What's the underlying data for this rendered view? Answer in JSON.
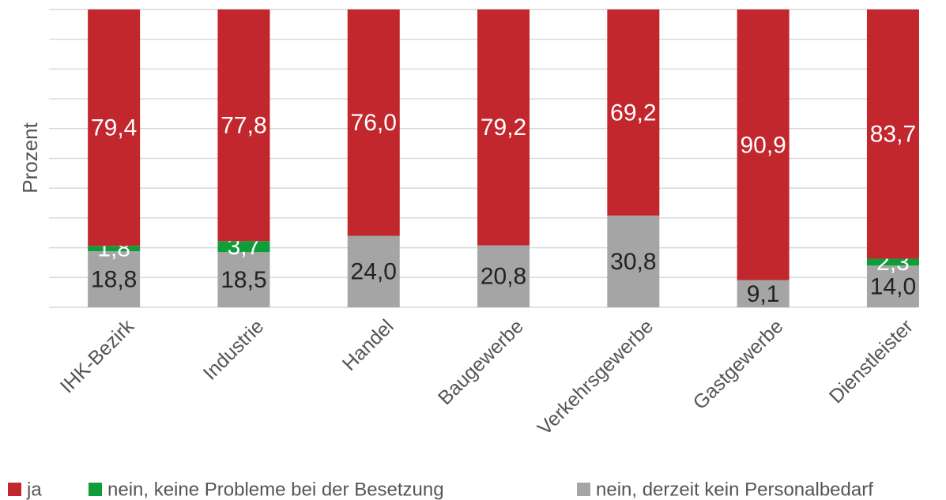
{
  "chart_data": {
    "type": "stacked_bar",
    "y_axis_label": "Prozent",
    "categories": [
      "IHK-Bezirk",
      "Industrie",
      "Handel",
      "Baugewerbe",
      "Verkehrsgewerbe",
      "Gastgewerbe",
      "Dienstleister"
    ],
    "series": [
      {
        "name": "nein, derzeit kein Personalbedarf",
        "color": "#a5a5a5",
        "values": [
          18.8,
          18.5,
          24.0,
          20.8,
          30.8,
          9.1,
          14.0
        ],
        "value_labels": [
          "18,8",
          "18,5",
          "24,0",
          "20,8",
          "30,8",
          "9,1",
          "14,0"
        ]
      },
      {
        "name": "nein, keine Probleme bei der Besetzung",
        "color": "#0f9d3a",
        "values": [
          1.8,
          3.7,
          0,
          0,
          0,
          0,
          2.3
        ],
        "value_labels": [
          "1,8",
          "3,7",
          null,
          null,
          null,
          null,
          "2,3"
        ]
      },
      {
        "name": "ja",
        "color": "#c1272d",
        "values": [
          79.4,
          77.8,
          76.0,
          79.2,
          69.2,
          90.9,
          83.7
        ],
        "value_labels": [
          "79,4",
          "77,8",
          "76,0",
          "79,2",
          "69,2",
          "90,9",
          "83,7"
        ]
      }
    ],
    "legend_order": [
      2,
      1,
      0
    ],
    "ylim": [
      0,
      100
    ],
    "yticks": [
      0,
      10,
      20,
      30,
      40,
      50,
      60,
      70,
      80,
      90,
      100
    ],
    "grid": true
  }
}
